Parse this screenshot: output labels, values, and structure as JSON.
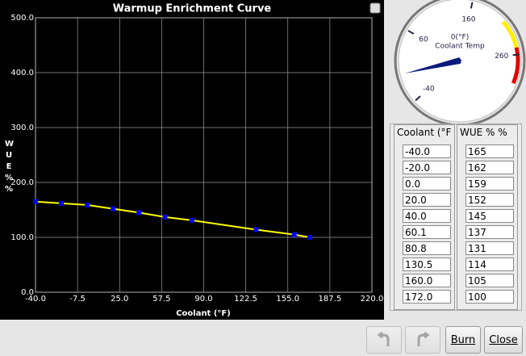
{
  "chart_data": {
    "type": "line",
    "title": "Warmup Enrichment Curve",
    "x_label": "Coolant (°F)",
    "y_label": "WUE % %",
    "x": [
      -40,
      -20,
      0,
      20,
      40,
      60.1,
      80.8,
      130.5,
      160,
      172
    ],
    "values": [
      165,
      162,
      159,
      152,
      145,
      137,
      131,
      114,
      105,
      100
    ],
    "color": "#ffff00",
    "marker_color": "#0000ff",
    "xlim": [
      -40,
      220
    ],
    "ylim": [
      0,
      500
    ],
    "xticks": [
      {
        "value": -40,
        "label": "-40.0"
      },
      -7.5,
      {
        "value": 25,
        "label": "25.0"
      },
      57.5,
      {
        "value": 90,
        "label": "90.0"
      },
      122.5,
      {
        "value": 155,
        "label": "155.0"
      },
      187.5,
      {
        "value": 220,
        "label": "220.0"
      }
    ],
    "yticks": [
      {
        "value": 0,
        "label": "0.0"
      },
      {
        "value": 100,
        "label": "100.0"
      },
      {
        "value": 200,
        "label": "200.0"
      },
      {
        "value": 300,
        "label": "300.0"
      },
      {
        "value": 400,
        "label": "400.0"
      },
      {
        "value": 500,
        "label": "500.0"
      }
    ],
    "grid": true
  },
  "gauge": {
    "title": "Coolant Temp",
    "value_label": "0(°F)",
    "value": 0,
    "min": -40,
    "max": 300,
    "ticks": [
      -40,
      60,
      160,
      260
    ],
    "warn": [
      210,
      250
    ],
    "danger": [
      250,
      300
    ]
  },
  "table": {
    "headers": [
      "Coolant (°F",
      "WUE % %"
    ],
    "rows": [
      [
        "-40.0",
        "165"
      ],
      [
        "-20.0",
        "162"
      ],
      [
        "0.0",
        "159"
      ],
      [
        "20.0",
        "152"
      ],
      [
        "40.0",
        "145"
      ],
      [
        "60.1",
        "137"
      ],
      [
        "80.8",
        "131"
      ],
      [
        "130.5",
        "114"
      ],
      [
        "160.0",
        "105"
      ],
      [
        "172.0",
        "100"
      ]
    ]
  },
  "buttons": {
    "burn": "Burn",
    "close": "Close"
  }
}
